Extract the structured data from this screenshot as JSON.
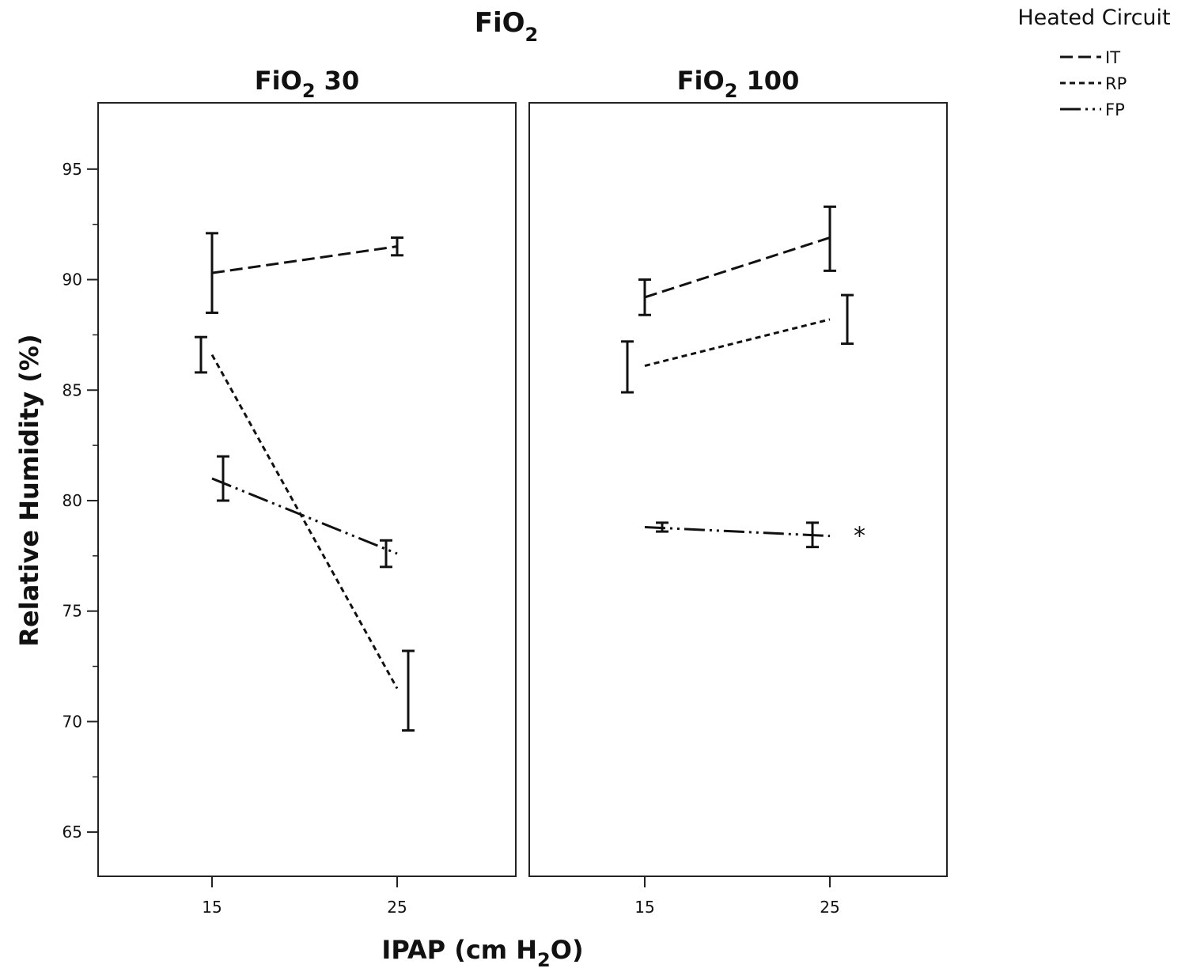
{
  "chart_data": {
    "type": "line",
    "title": "FiO",
    "title_sub": "2",
    "xlabel_pre": "IPAP (cm H",
    "xlabel_sub": "2",
    "xlabel_post": "O)",
    "ylabel": "Relative Humidity (%)",
    "ylim": [
      63,
      98
    ],
    "yticks": [
      65,
      70,
      75,
      80,
      85,
      90,
      95
    ],
    "x_categories": [
      "15",
      "25"
    ],
    "legend": {
      "title": "Heated Circuit",
      "position": "top-right",
      "entries": [
        "IT",
        "RP",
        "FP"
      ]
    },
    "panels": [
      {
        "title_pre": "FiO",
        "title_sub": "2",
        "title_post": " 30",
        "series": [
          {
            "name": "IT",
            "values": [
              90.3,
              91.5
            ],
            "err_low": [
              88.5,
              91.1
            ],
            "err_high": [
              92.1,
              91.9
            ]
          },
          {
            "name": "RP",
            "values": [
              86.6,
              71.5
            ],
            "err_low": [
              85.8,
              69.6
            ],
            "err_high": [
              87.4,
              73.2
            ]
          },
          {
            "name": "FP",
            "values": [
              81.0,
              77.6
            ],
            "err_low": [
              80.0,
              77.0
            ],
            "err_high": [
              82.0,
              78.2
            ]
          }
        ],
        "annotations": []
      },
      {
        "title_pre": "FiO",
        "title_sub": "2",
        "title_post": " 100",
        "series": [
          {
            "name": "IT",
            "values": [
              89.2,
              91.9
            ],
            "err_low": [
              88.4,
              90.4
            ],
            "err_high": [
              90.0,
              93.3
            ]
          },
          {
            "name": "RP",
            "values": [
              86.1,
              88.2
            ],
            "err_low": [
              84.9,
              87.1
            ],
            "err_high": [
              87.2,
              89.3
            ]
          },
          {
            "name": "FP",
            "values": [
              78.8,
              78.4
            ],
            "err_low": [
              78.6,
              77.9
            ],
            "err_high": [
              79.0,
              79.0
            ]
          }
        ],
        "annotations": [
          {
            "series": "FP",
            "x_index": 1,
            "text": "*"
          }
        ]
      }
    ],
    "colors": {
      "line": "#111111",
      "axis": "#222222",
      "background": "#ffffff"
    }
  }
}
